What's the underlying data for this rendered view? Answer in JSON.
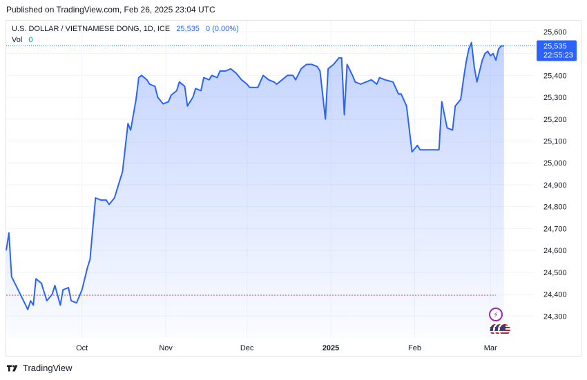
{
  "published": "Published on TradingView.com, Feb 26, 2025 23:04 UTC",
  "legend": {
    "symbol": "U.S. DOLLAR / VIETNAMESE DONG, 1D, ICE",
    "last": "25,535",
    "change": "0 (0.00%)",
    "vol_label": "Vol",
    "vol_value": "0"
  },
  "price_tag": {
    "price": "25,535",
    "countdown": "22:55:23"
  },
  "footer": {
    "brand": "TradingView"
  },
  "colors": {
    "line": "#2962ff",
    "price_line": "#2962ff",
    "baseline": "#ef5350",
    "tag": "#2962ff"
  },
  "chart_data": {
    "type": "area",
    "title": "U.S. DOLLAR / VIETNAMESE DONG, 1D, ICE",
    "xlabel": "",
    "ylabel": "",
    "ylim": [
      24200,
      25650
    ],
    "y_ticks": [
      "24,300",
      "24,400",
      "24,500",
      "24,600",
      "24,700",
      "24,800",
      "24,900",
      "25,000",
      "25,100",
      "25,200",
      "25,300",
      "25,400",
      "25,500",
      "25,600"
    ],
    "x_ticks": [
      {
        "label": "Oct",
        "date": "2024-10-01",
        "bold": false
      },
      {
        "label": "Nov",
        "date": "2024-11-01",
        "bold": false
      },
      {
        "label": "Dec",
        "date": "2024-12-01",
        "bold": false
      },
      {
        "label": "2025",
        "date": "2025-01-01",
        "bold": true
      },
      {
        "label": "Feb",
        "date": "2025-02-01",
        "bold": false
      },
      {
        "label": "Mar",
        "date": "2025-03-01",
        "bold": false
      }
    ],
    "x_range": [
      "2024-09-03",
      "2025-03-03"
    ],
    "last_price": 25535,
    "reference_price": 24395,
    "grid": true,
    "series": [
      {
        "values": [
          [
            "2024-09-03",
            24600
          ],
          [
            "2024-09-04",
            24680
          ],
          [
            "2024-09-05",
            24480
          ],
          [
            "2024-09-09",
            24380
          ],
          [
            "2024-09-11",
            24330
          ],
          [
            "2024-09-12",
            24370
          ],
          [
            "2024-09-13",
            24350
          ],
          [
            "2024-09-14",
            24470
          ],
          [
            "2024-09-16",
            24450
          ],
          [
            "2024-09-18",
            24370
          ],
          [
            "2024-09-20",
            24400
          ],
          [
            "2024-09-21",
            24440
          ],
          [
            "2024-09-23",
            24350
          ],
          [
            "2024-09-24",
            24420
          ],
          [
            "2024-09-26",
            24430
          ],
          [
            "2024-09-27",
            24370
          ],
          [
            "2024-09-29",
            24360
          ],
          [
            "2024-10-01",
            24420
          ],
          [
            "2024-10-03",
            24520
          ],
          [
            "2024-10-04",
            24560
          ],
          [
            "2024-10-06",
            24840
          ],
          [
            "2024-10-08",
            24830
          ],
          [
            "2024-10-10",
            24830
          ],
          [
            "2024-10-11",
            24810
          ],
          [
            "2024-10-13",
            24840
          ],
          [
            "2024-10-15",
            24920
          ],
          [
            "2024-10-16",
            24960
          ],
          [
            "2024-10-18",
            25180
          ],
          [
            "2024-10-19",
            25150
          ],
          [
            "2024-10-21",
            25290
          ],
          [
            "2024-10-22",
            25390
          ],
          [
            "2024-10-23",
            25400
          ],
          [
            "2024-10-25",
            25380
          ],
          [
            "2024-10-26",
            25360
          ],
          [
            "2024-10-28",
            25350
          ],
          [
            "2024-10-29",
            25300
          ],
          [
            "2024-10-31",
            25270
          ],
          [
            "2024-11-02",
            25280
          ],
          [
            "2024-11-03",
            25310
          ],
          [
            "2024-11-05",
            25330
          ],
          [
            "2024-11-06",
            25370
          ],
          [
            "2024-11-08",
            25350
          ],
          [
            "2024-11-09",
            25260
          ],
          [
            "2024-11-11",
            25300
          ],
          [
            "2024-11-12",
            25340
          ],
          [
            "2024-11-14",
            25330
          ],
          [
            "2024-11-15",
            25390
          ],
          [
            "2024-11-17",
            25380
          ],
          [
            "2024-11-18",
            25400
          ],
          [
            "2024-11-20",
            25390
          ],
          [
            "2024-11-21",
            25420
          ],
          [
            "2024-11-23",
            25420
          ],
          [
            "2024-11-25",
            25430
          ],
          [
            "2024-11-27",
            25410
          ],
          [
            "2024-11-29",
            25380
          ],
          [
            "2024-12-01",
            25360
          ],
          [
            "2024-12-02",
            25345
          ],
          [
            "2024-12-05",
            25345
          ],
          [
            "2024-12-07",
            25400
          ],
          [
            "2024-12-09",
            25380
          ],
          [
            "2024-12-11",
            25370
          ],
          [
            "2024-12-12",
            25360
          ],
          [
            "2024-12-14",
            25380
          ],
          [
            "2024-12-16",
            25400
          ],
          [
            "2024-12-18",
            25400
          ],
          [
            "2024-12-19",
            25380
          ],
          [
            "2024-12-21",
            25430
          ],
          [
            "2024-12-23",
            25450
          ],
          [
            "2024-12-25",
            25450
          ],
          [
            "2024-12-27",
            25440
          ],
          [
            "2024-12-28",
            25420
          ],
          [
            "2024-12-30",
            25200
          ],
          [
            "2024-12-31",
            25430
          ],
          [
            "2025-01-02",
            25450
          ],
          [
            "2025-01-04",
            25480
          ],
          [
            "2025-01-05",
            25480
          ],
          [
            "2025-01-06",
            25220
          ],
          [
            "2025-01-07",
            25450
          ],
          [
            "2025-01-09",
            25400
          ],
          [
            "2025-01-10",
            25370
          ],
          [
            "2025-01-12",
            25360
          ],
          [
            "2025-01-14",
            25370
          ],
          [
            "2025-01-16",
            25380
          ],
          [
            "2025-01-18",
            25360
          ],
          [
            "2025-01-19",
            25390
          ],
          [
            "2025-01-21",
            25380
          ],
          [
            "2025-01-24",
            25370
          ],
          [
            "2025-01-26",
            25315
          ],
          [
            "2025-01-27",
            25315
          ],
          [
            "2025-01-29",
            25260
          ],
          [
            "2025-01-31",
            25050
          ],
          [
            "2025-02-02",
            25080
          ],
          [
            "2025-02-03",
            25060
          ],
          [
            "2025-02-10",
            25060
          ],
          [
            "2025-02-11",
            25280
          ],
          [
            "2025-02-13",
            25160
          ],
          [
            "2025-02-15",
            25150
          ],
          [
            "2025-02-16",
            25260
          ],
          [
            "2025-02-18",
            25290
          ],
          [
            "2025-02-19",
            25380
          ],
          [
            "2025-02-20",
            25460
          ],
          [
            "2025-02-21",
            25520
          ],
          [
            "2025-02-22",
            25550
          ],
          [
            "2025-02-23",
            25440
          ],
          [
            "2025-02-24",
            25370
          ],
          [
            "2025-02-26",
            25470
          ],
          [
            "2025-02-27",
            25500
          ],
          [
            "2025-02-28",
            25510
          ],
          [
            "2025-03-01",
            25490
          ],
          [
            "2025-03-02",
            25500
          ],
          [
            "2025-03-03",
            25470
          ],
          [
            "2025-03-04",
            25520
          ],
          [
            "2025-03-05",
            25535
          ],
          [
            "2025-03-06",
            25535
          ]
        ]
      }
    ]
  }
}
